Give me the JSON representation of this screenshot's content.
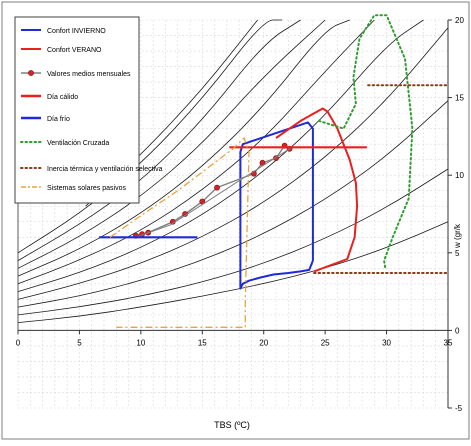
{
  "chart_data": {
    "type": "line",
    "title": "",
    "xlabel": "TBS (ºC)",
    "ylabel": "w (gr/k",
    "xlim": [
      0,
      35
    ],
    "ylim": [
      -5,
      20
    ],
    "x_ticks": [
      0,
      5,
      10,
      15,
      20,
      25,
      30,
      35
    ],
    "y_ticks": [
      -5,
      0,
      5,
      10,
      15,
      20
    ],
    "y_axis_side": "right",
    "grid": true,
    "legend_position": "top-left",
    "legend": [
      {
        "label": "Confort INVIERNO",
        "color": "#1f2bd6",
        "style": "solid"
      },
      {
        "label": "Confort VERANO",
        "color": "#e8211f",
        "style": "solid"
      },
      {
        "label": "Valores medios mensuales",
        "color": "#808080",
        "style": "marker"
      },
      {
        "label": "Día cálido",
        "color": "#e8211f",
        "style": "thick"
      },
      {
        "label": "Día frío",
        "color": "#1f2bd6",
        "style": "thick"
      },
      {
        "label": "Ventilación Cruzada",
        "color": "#2e9e2e",
        "style": "dotted"
      },
      {
        "label": "Inercia térmica y ventilación selectiva",
        "color": "#8b3a1a",
        "style": "dotted"
      },
      {
        "label": "Sistemas solares pasivos",
        "color": "#e8a33c",
        "style": "dashdot"
      }
    ],
    "psychrometric_curves": [
      {
        "x": [
          0,
          5,
          10,
          15,
          20,
          25,
          30,
          35
        ],
        "y": [
          0.5,
          0.9,
          1.5,
          2.2,
          3.0,
          4.0,
          5.3,
          7.0
        ]
      },
      {
        "x": [
          0,
          5,
          10,
          15,
          20,
          25,
          30,
          35
        ],
        "y": [
          1.0,
          1.5,
          2.2,
          3.1,
          4.3,
          5.9,
          7.9,
          10.4
        ]
      },
      {
        "x": [
          0,
          5,
          10,
          15,
          20,
          25,
          30,
          35
        ],
        "y": [
          1.5,
          2.2,
          3.2,
          4.5,
          6.2,
          8.4,
          11.2,
          14.8
        ]
      },
      {
        "x": [
          0,
          5,
          10,
          15,
          20,
          25,
          30,
          35
        ],
        "y": [
          2.0,
          3.0,
          4.3,
          6.0,
          8.2,
          11.1,
          14.8,
          19.5
        ]
      },
      {
        "x": [
          0,
          5,
          10,
          15,
          20,
          25,
          30,
          33
        ],
        "y": [
          2.5,
          3.7,
          5.3,
          7.4,
          10.2,
          13.8,
          18.4,
          20.0
        ]
      },
      {
        "x": [
          0,
          5,
          10,
          15,
          20,
          25,
          29
        ],
        "y": [
          3.0,
          4.5,
          6.4,
          9.0,
          12.3,
          16.7,
          20.0
        ]
      },
      {
        "x": [
          0,
          5,
          10,
          15,
          20,
          25,
          27
        ],
        "y": [
          3.5,
          5.2,
          7.5,
          10.5,
          14.4,
          19.4,
          20.0
        ]
      },
      {
        "x": [
          0,
          5,
          10,
          15,
          20,
          25
        ],
        "y": [
          4.0,
          6.0,
          8.6,
          12.0,
          16.4,
          20.0
        ]
      },
      {
        "x": [
          0,
          5,
          10,
          15,
          20,
          23
        ],
        "y": [
          4.5,
          6.8,
          9.6,
          13.5,
          18.5,
          20.0
        ]
      },
      {
        "x": [
          0,
          5,
          10,
          15,
          20,
          21.5
        ],
        "y": [
          5.0,
          7.5,
          10.7,
          14.9,
          20.0,
          20.0
        ]
      },
      {
        "x": [
          5.5,
          10,
          15,
          19.5
        ],
        "y": [
          8.0,
          11.3,
          15.5,
          20.0
        ]
      }
    ],
    "series": [
      {
        "name": "Confort INVIERNO",
        "color": "#1f2bd6",
        "style": "solid",
        "closed": true,
        "x": [
          18.1,
          18.3,
          18.8,
          19.7,
          20.8,
          22.0,
          23.0,
          23.7,
          24.0,
          24.0,
          24.0,
          23.6,
          18.3,
          18.1
        ],
        "y": [
          2.7,
          3.0,
          3.2,
          3.4,
          3.6,
          3.7,
          3.8,
          3.9,
          4.5,
          8.0,
          13.0,
          13.4,
          12.0,
          11.5
        ]
      },
      {
        "name": "Confort VERANO",
        "color": "#e8211f",
        "style": "solid",
        "closed": false,
        "x": [
          24.1,
          26.8,
          27.4,
          27.6,
          27.5,
          27.0,
          26.0,
          25.2,
          24.8,
          23.0,
          21.0
        ],
        "y": [
          3.8,
          4.6,
          6.0,
          8.0,
          9.5,
          11.0,
          13.0,
          14.1,
          14.3,
          13.5,
          12.4
        ]
      },
      {
        "name": "Valores medios mensuales",
        "color": "#808080",
        "style": "marker",
        "x": [
          9.6,
          10.1,
          10.6,
          12.6,
          13.6,
          15.0,
          16.2,
          19.2,
          19.9,
          21.0,
          21.7,
          22.1
        ],
        "y": [
          6.1,
          6.2,
          6.3,
          7.0,
          7.5,
          8.3,
          9.2,
          10.1,
          10.8,
          11.1,
          11.9,
          11.7
        ]
      },
      {
        "name": "Valores medios mensuales (secundaria)",
        "color": "#808080",
        "style": "thin",
        "x": [
          9.6,
          12.4,
          15.2,
          18.1,
          20.7,
          22.3
        ],
        "y": [
          6.0,
          6.8,
          8.2,
          9.7,
          11.0,
          11.8
        ]
      },
      {
        "name": "Día cálido",
        "color": "#e8211f",
        "style": "thick",
        "x": [
          17.2,
          28.4
        ],
        "y": [
          11.8,
          11.8
        ]
      },
      {
        "name": "Día frío",
        "color": "#1f2bd6",
        "style": "thick",
        "x": [
          6.6,
          14.6
        ],
        "y": [
          6.0,
          6.0
        ]
      },
      {
        "name": "Ventilación Cruzada",
        "color": "#2e9e2e",
        "style": "dotted",
        "x": [
          24.5,
          26.5,
          27.5,
          27.3,
          27.8,
          29.0,
          30.0,
          31.5,
          32.1,
          31.8,
          30.5,
          29.8,
          29.9
        ],
        "y": [
          13.5,
          13.0,
          14.6,
          16.3,
          18.8,
          20.3,
          20.3,
          17.5,
          13.0,
          8.5,
          6.0,
          4.5,
          4.0
        ]
      },
      {
        "name": "Inercia térmica y ventilación selectiva (superior)",
        "color": "#8b3a1a",
        "style": "dotted",
        "x": [
          28.5,
          35
        ],
        "y": [
          15.8,
          15.8
        ]
      },
      {
        "name": "Inercia térmica y ventilación selectiva (inferior)",
        "color": "#8b3a1a",
        "style": "dotted",
        "x": [
          24.1,
          35
        ],
        "y": [
          3.7,
          3.7
        ]
      },
      {
        "name": "Sistemas solares pasivos",
        "color": "#e8a33c",
        "style": "dashdot",
        "x": [
          7.5,
          10.0,
          13.0,
          15.5,
          17.5,
          18.4,
          18.8,
          18.5,
          18.5,
          8.0
        ],
        "y": [
          6.0,
          7.4,
          9.0,
          10.5,
          11.7,
          12.4,
          11.5,
          2.0,
          0.2,
          0.2
        ]
      }
    ]
  }
}
